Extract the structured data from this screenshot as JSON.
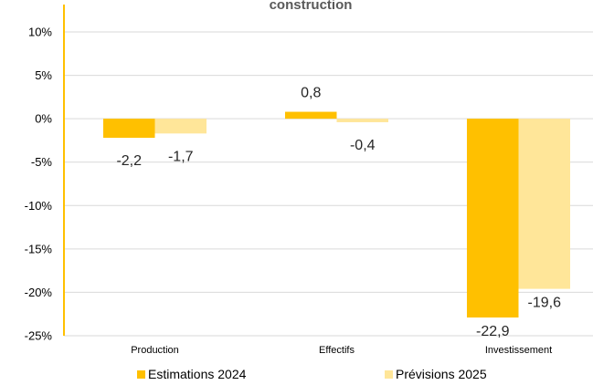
{
  "chart_data": {
    "type": "bar",
    "title": "construction",
    "categories": [
      "Production",
      "Effectifs",
      "Investissement"
    ],
    "series": [
      {
        "name": "Estimations 2024",
        "values": [
          -2.2,
          0.8,
          -22.9
        ],
        "labels": [
          "-2,2",
          "0,8",
          "-22,9"
        ],
        "color": "#FFC000"
      },
      {
        "name": "Prévisions 2025",
        "values": [
          -1.7,
          -0.4,
          -19.6
        ],
        "labels": [
          "-1,7",
          "-0,4",
          "-19,6"
        ],
        "color": "#FFE699"
      }
    ],
    "yticks": [
      10,
      5,
      0,
      -5,
      -10,
      -15,
      -20,
      -25
    ],
    "ytick_labels": [
      "10%",
      "5%",
      "0%",
      "-5%",
      "-10%",
      "-15%",
      "-20%",
      "-25%"
    ],
    "ylim": [
      -25,
      10
    ],
    "axis_color": "#FFC000",
    "grid": true,
    "grid_color": "#D9D9D9",
    "legend_position": "bottom"
  }
}
